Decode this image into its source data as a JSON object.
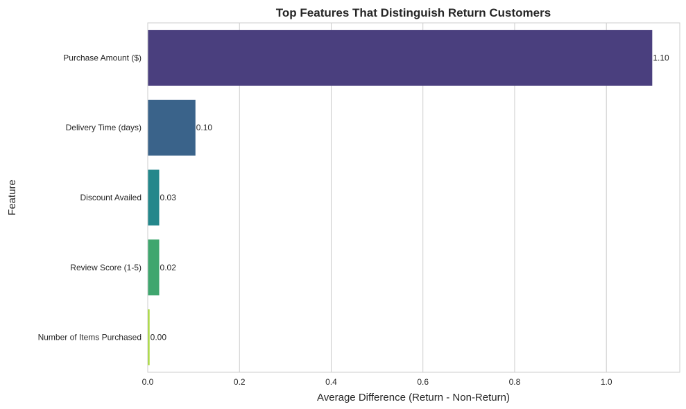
{
  "chart_data": {
    "type": "bar",
    "orientation": "horizontal",
    "title": "Top Features That Distinguish Return Customers",
    "xlabel": "Average Difference (Return - Non-Return)",
    "ylabel": "Feature",
    "xlim": [
      0,
      1.16
    ],
    "xticks": [
      0.0,
      0.2,
      0.4,
      0.6,
      0.8,
      1.0
    ],
    "xtick_labels": [
      "0.0",
      "0.2",
      "0.4",
      "0.6",
      "0.8",
      "1.0"
    ],
    "grid": "vertical",
    "categories": [
      "Purchase Amount ($)",
      "Delivery Time (days)",
      "Discount Availed",
      "Review Score (1-5)",
      "Number of Items Purchased"
    ],
    "values": [
      1.1,
      0.1,
      0.03,
      0.02,
      0.0
    ],
    "bar_values": [
      1.1,
      0.104,
      0.025,
      0.025,
      0.004
    ],
    "data_labels": [
      "1.10",
      "0.10",
      "0.03",
      "0.02",
      "0.00"
    ],
    "colors": [
      "#4a3f7e",
      "#3a638a",
      "#24878b",
      "#3fa66e",
      "#a8db34"
    ],
    "gridline_color": "#cccccc",
    "spine_color": "#cccccc"
  }
}
